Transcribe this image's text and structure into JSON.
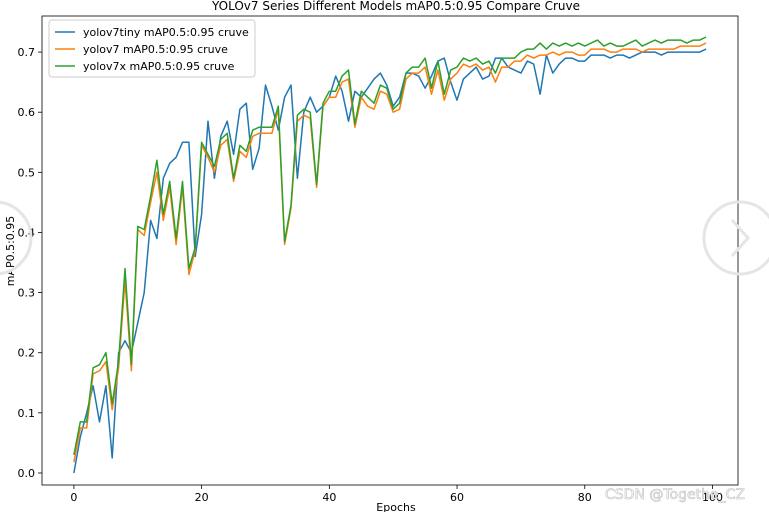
{
  "chart_data": {
    "type": "line",
    "title": "YOLOv7 Series Different Models mAP0.5:0.95 Compare Cruve",
    "xlabel": "Epochs",
    "ylabel": "mAP0.5:0.95",
    "xlim": [
      -5,
      104
    ],
    "ylim": [
      -0.02,
      0.76
    ],
    "xticks": [
      0,
      20,
      40,
      60,
      80,
      100
    ],
    "yticks": [
      0.0,
      0.1,
      0.2,
      0.3,
      0.4,
      0.5,
      0.6,
      0.7
    ],
    "legend_position": "top-left",
    "grid": false,
    "x": [
      0,
      1,
      2,
      3,
      4,
      5,
      6,
      7,
      8,
      9,
      10,
      11,
      12,
      13,
      14,
      15,
      16,
      17,
      18,
      19,
      20,
      21,
      22,
      23,
      24,
      25,
      26,
      27,
      28,
      29,
      30,
      31,
      32,
      33,
      34,
      35,
      36,
      37,
      38,
      39,
      40,
      41,
      42,
      43,
      44,
      45,
      46,
      47,
      48,
      49,
      50,
      51,
      52,
      53,
      54,
      55,
      56,
      57,
      58,
      59,
      60,
      61,
      62,
      63,
      64,
      65,
      66,
      67,
      68,
      69,
      70,
      71,
      72,
      73,
      74,
      75,
      76,
      77,
      78,
      79,
      80,
      81,
      82,
      83,
      84,
      85,
      86,
      87,
      88,
      89,
      90,
      91,
      92,
      93,
      94,
      95,
      96,
      97,
      98,
      99
    ],
    "series": [
      {
        "name": "yolov7tiny mAP0.5:0.95 cruve",
        "color": "#1f77b4",
        "values": [
          0.0,
          0.06,
          0.1,
          0.145,
          0.085,
          0.145,
          0.025,
          0.2,
          0.22,
          0.2,
          0.25,
          0.3,
          0.42,
          0.39,
          0.49,
          0.515,
          0.525,
          0.55,
          0.55,
          0.36,
          0.43,
          0.585,
          0.49,
          0.56,
          0.585,
          0.53,
          0.605,
          0.615,
          0.505,
          0.54,
          0.645,
          0.61,
          0.57,
          0.625,
          0.645,
          0.49,
          0.6,
          0.625,
          0.6,
          0.61,
          0.625,
          0.66,
          0.635,
          0.585,
          0.635,
          0.625,
          0.64,
          0.655,
          0.665,
          0.645,
          0.61,
          0.625,
          0.665,
          0.665,
          0.66,
          0.64,
          0.66,
          0.685,
          0.69,
          0.65,
          0.62,
          0.655,
          0.665,
          0.675,
          0.655,
          0.66,
          0.69,
          0.69,
          0.675,
          0.67,
          0.665,
          0.685,
          0.68,
          0.63,
          0.695,
          0.665,
          0.68,
          0.69,
          0.69,
          0.685,
          0.685,
          0.695,
          0.695,
          0.695,
          0.69,
          0.695,
          0.695,
          0.69,
          0.695,
          0.7,
          0.7,
          0.7,
          0.695,
          0.7,
          0.7,
          0.7,
          0.7,
          0.7,
          0.7,
          0.705
        ]
      },
      {
        "name": "yolov7 mAP0.5:0.95 cruve",
        "color": "#ff7f0e",
        "values": [
          0.018,
          0.075,
          0.075,
          0.165,
          0.17,
          0.185,
          0.105,
          0.175,
          0.32,
          0.17,
          0.405,
          0.395,
          0.45,
          0.5,
          0.42,
          0.475,
          0.38,
          0.475,
          0.33,
          0.37,
          0.545,
          0.525,
          0.5,
          0.545,
          0.555,
          0.485,
          0.535,
          0.525,
          0.56,
          0.565,
          0.565,
          0.565,
          0.605,
          0.38,
          0.44,
          0.585,
          0.595,
          0.59,
          0.475,
          0.61,
          0.625,
          0.625,
          0.65,
          0.655,
          0.575,
          0.625,
          0.61,
          0.605,
          0.635,
          0.63,
          0.6,
          0.605,
          0.655,
          0.665,
          0.665,
          0.675,
          0.63,
          0.67,
          0.62,
          0.655,
          0.665,
          0.68,
          0.675,
          0.68,
          0.67,
          0.675,
          0.65,
          0.675,
          0.675,
          0.685,
          0.685,
          0.695,
          0.69,
          0.695,
          0.695,
          0.7,
          0.695,
          0.7,
          0.7,
          0.695,
          0.695,
          0.705,
          0.705,
          0.705,
          0.7,
          0.7,
          0.705,
          0.705,
          0.705,
          0.7,
          0.705,
          0.705,
          0.705,
          0.705,
          0.705,
          0.71,
          0.71,
          0.71,
          0.71,
          0.715
        ]
      },
      {
        "name": "yolov7x mAP0.5:0.95 cruve",
        "color": "#2ca02c",
        "values": [
          0.03,
          0.085,
          0.085,
          0.175,
          0.18,
          0.2,
          0.115,
          0.185,
          0.34,
          0.18,
          0.41,
          0.405,
          0.46,
          0.52,
          0.43,
          0.485,
          0.39,
          0.485,
          0.34,
          0.375,
          0.55,
          0.53,
          0.51,
          0.555,
          0.565,
          0.49,
          0.545,
          0.535,
          0.57,
          0.575,
          0.575,
          0.575,
          0.61,
          0.385,
          0.445,
          0.595,
          0.605,
          0.6,
          0.48,
          0.615,
          0.635,
          0.635,
          0.66,
          0.67,
          0.58,
          0.635,
          0.625,
          0.615,
          0.645,
          0.64,
          0.605,
          0.615,
          0.665,
          0.675,
          0.675,
          0.69,
          0.64,
          0.685,
          0.63,
          0.67,
          0.675,
          0.69,
          0.685,
          0.69,
          0.68,
          0.685,
          0.665,
          0.69,
          0.69,
          0.69,
          0.7,
          0.705,
          0.705,
          0.715,
          0.705,
          0.715,
          0.71,
          0.715,
          0.71,
          0.715,
          0.71,
          0.715,
          0.72,
          0.71,
          0.715,
          0.71,
          0.71,
          0.715,
          0.72,
          0.71,
          0.715,
          0.72,
          0.715,
          0.72,
          0.72,
          0.72,
          0.715,
          0.72,
          0.72,
          0.725
        ]
      }
    ]
  },
  "watermark": "CSDN @Togethe_CZ",
  "nav_icon": "chevron-circle-icon"
}
